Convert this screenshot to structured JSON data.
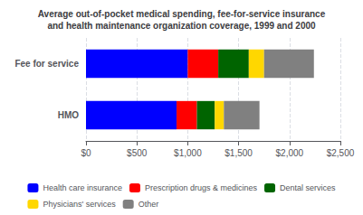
{
  "chart_data": {
    "type": "bar",
    "orientation": "horizontal",
    "stacked": true,
    "title": "Average out-of-pocket medical spending, fee-for-service insurance\nand health maintenance organization coverage, 1999 and 2000",
    "categories": [
      "Fee for service",
      "HMO"
    ],
    "series": [
      {
        "name": "Health care insurance",
        "color": "#0000FF",
        "values": [
          1000,
          890
        ]
      },
      {
        "name": "Prescription drugs & medicines",
        "color": "#FF0000",
        "values": [
          300,
          200
        ]
      },
      {
        "name": "Dental services",
        "color": "#006400",
        "values": [
          300,
          175
        ]
      },
      {
        "name": "Physicians' services",
        "color": "#FFD700",
        "values": [
          150,
          90
        ]
      },
      {
        "name": "Other",
        "color": "#808080",
        "values": [
          490,
          350
        ]
      }
    ],
    "xlim": [
      0,
      2500
    ],
    "xticks": [
      {
        "value": 0,
        "label": "$0"
      },
      {
        "value": 500,
        "label": "$500"
      },
      {
        "value": 1000,
        "label": "$1,000"
      },
      {
        "value": 1500,
        "label": "$1,500"
      },
      {
        "value": 2000,
        "label": "$2,000"
      },
      {
        "value": 2500,
        "label": "$2,500"
      }
    ],
    "grid": true,
    "legend": "bottom"
  }
}
